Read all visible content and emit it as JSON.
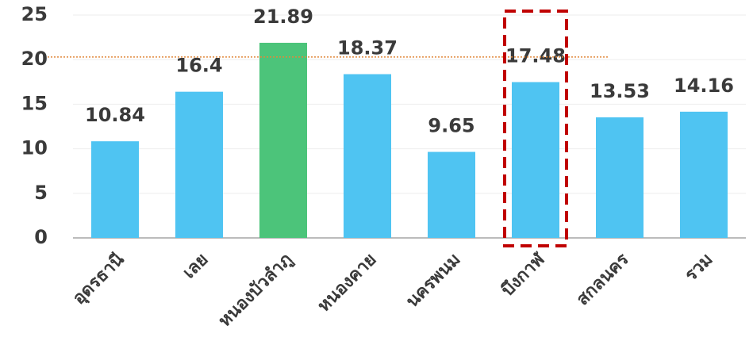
{
  "chart_data": {
    "type": "bar",
    "categories": [
      "อุดรธานี",
      "เลย",
      "หนองบัวลำภู",
      "หนองคาย",
      "นครพนม",
      "บึงกาฬ",
      "สกลนคร",
      "รวม"
    ],
    "values": [
      10.84,
      16.4,
      21.89,
      18.37,
      9.65,
      17.48,
      13.53,
      14.16
    ],
    "colors": [
      "#4fc4f2",
      "#4fc4f2",
      "#4cc47a",
      "#4fc4f2",
      "#4fc4f2",
      "#4fc4f2",
      "#4fc4f2",
      "#4fc4f2"
    ],
    "ylim": [
      0,
      25
    ],
    "yticks": [
      0,
      5,
      10,
      15,
      20,
      25
    ],
    "grid": true,
    "reference_line": {
      "value": 20.3,
      "color": "#e0883a"
    },
    "highlight": {
      "index": 5,
      "color": "#c00000"
    }
  }
}
